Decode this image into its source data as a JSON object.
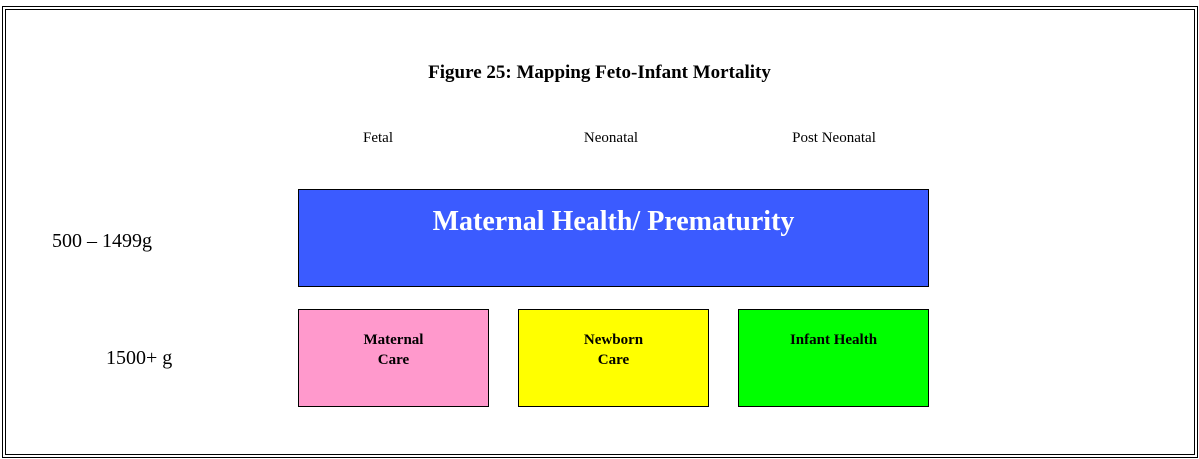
{
  "title": "Figure 25: Mapping Feto-Infant Mortality",
  "columns": [
    "Fetal",
    "Neonatal",
    "Post Neonatal"
  ],
  "rows": [
    "500 – 1499g",
    "1500+ g"
  ],
  "boxes": {
    "top": "Maternal Health/ Prematurity",
    "maternal_care": [
      "Maternal",
      "Care"
    ],
    "newborn_care": [
      "Newborn",
      "Care"
    ],
    "infant_health": "Infant Health"
  }
}
